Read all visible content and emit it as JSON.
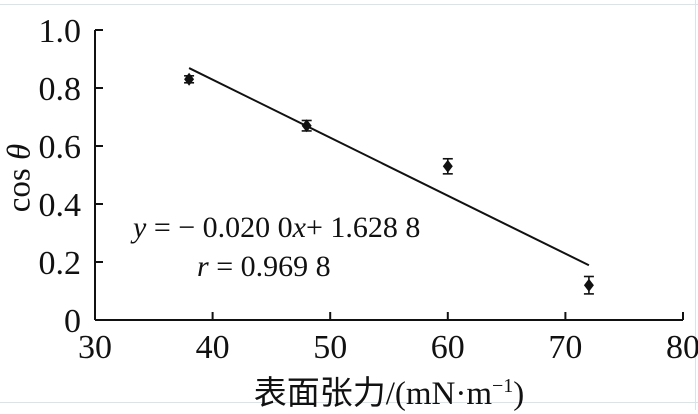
{
  "figure": {
    "background": "#ffffff",
    "frame_color": "#d7e5ea",
    "ink_color": "#111111"
  },
  "chart_data": {
    "type": "scatter",
    "title": "",
    "xlabel": "表面张力/(mN·m⁻¹)",
    "xlabel_parts": [
      {
        "t": "表面张力/(mN·m"
      },
      {
        "t": "−1",
        "sup": true
      },
      {
        "t": ")"
      }
    ],
    "ylabel": "cos θ",
    "ylabel_parts": [
      {
        "t": "cos "
      },
      {
        "t": "θ",
        "i": true
      }
    ],
    "xlim": [
      30,
      80
    ],
    "ylim": [
      0,
      1.0
    ],
    "xticks": [
      30,
      40,
      50,
      60,
      70,
      80
    ],
    "xtick_labels": [
      "30",
      "40",
      "50",
      "60",
      "70",
      "80"
    ],
    "yticks": [
      0,
      0.2,
      0.4,
      0.6,
      0.8,
      1.0
    ],
    "ytick_labels": [
      "0",
      "0.2",
      "0.4",
      "0.6",
      "0.8",
      "1.0"
    ],
    "grid": false,
    "legend": null,
    "points": [
      {
        "x": 38,
        "y": 0.83,
        "yerr": 0.012
      },
      {
        "x": 48,
        "y": 0.67,
        "yerr": 0.018
      },
      {
        "x": 60,
        "y": 0.53,
        "yerr": 0.026
      },
      {
        "x": 72,
        "y": 0.12,
        "yerr": 0.03
      }
    ],
    "fit_line": {
      "slope": -0.02,
      "intercept": 1.6288,
      "x_start": 38,
      "x_end": 72
    },
    "annotation": {
      "equation_text": "y = − 0.020 0x+ 1.628 8",
      "equation_parts": [
        {
          "t": "y",
          "i": true
        },
        {
          "t": " = − 0.020 0"
        },
        {
          "t": "x",
          "i": true
        },
        {
          "t": "+ 1.628 8"
        }
      ],
      "r_text": "r = 0.969 8",
      "r_parts": [
        {
          "t": "r",
          "i": true
        },
        {
          "t": " = 0.969 8"
        }
      ]
    }
  }
}
